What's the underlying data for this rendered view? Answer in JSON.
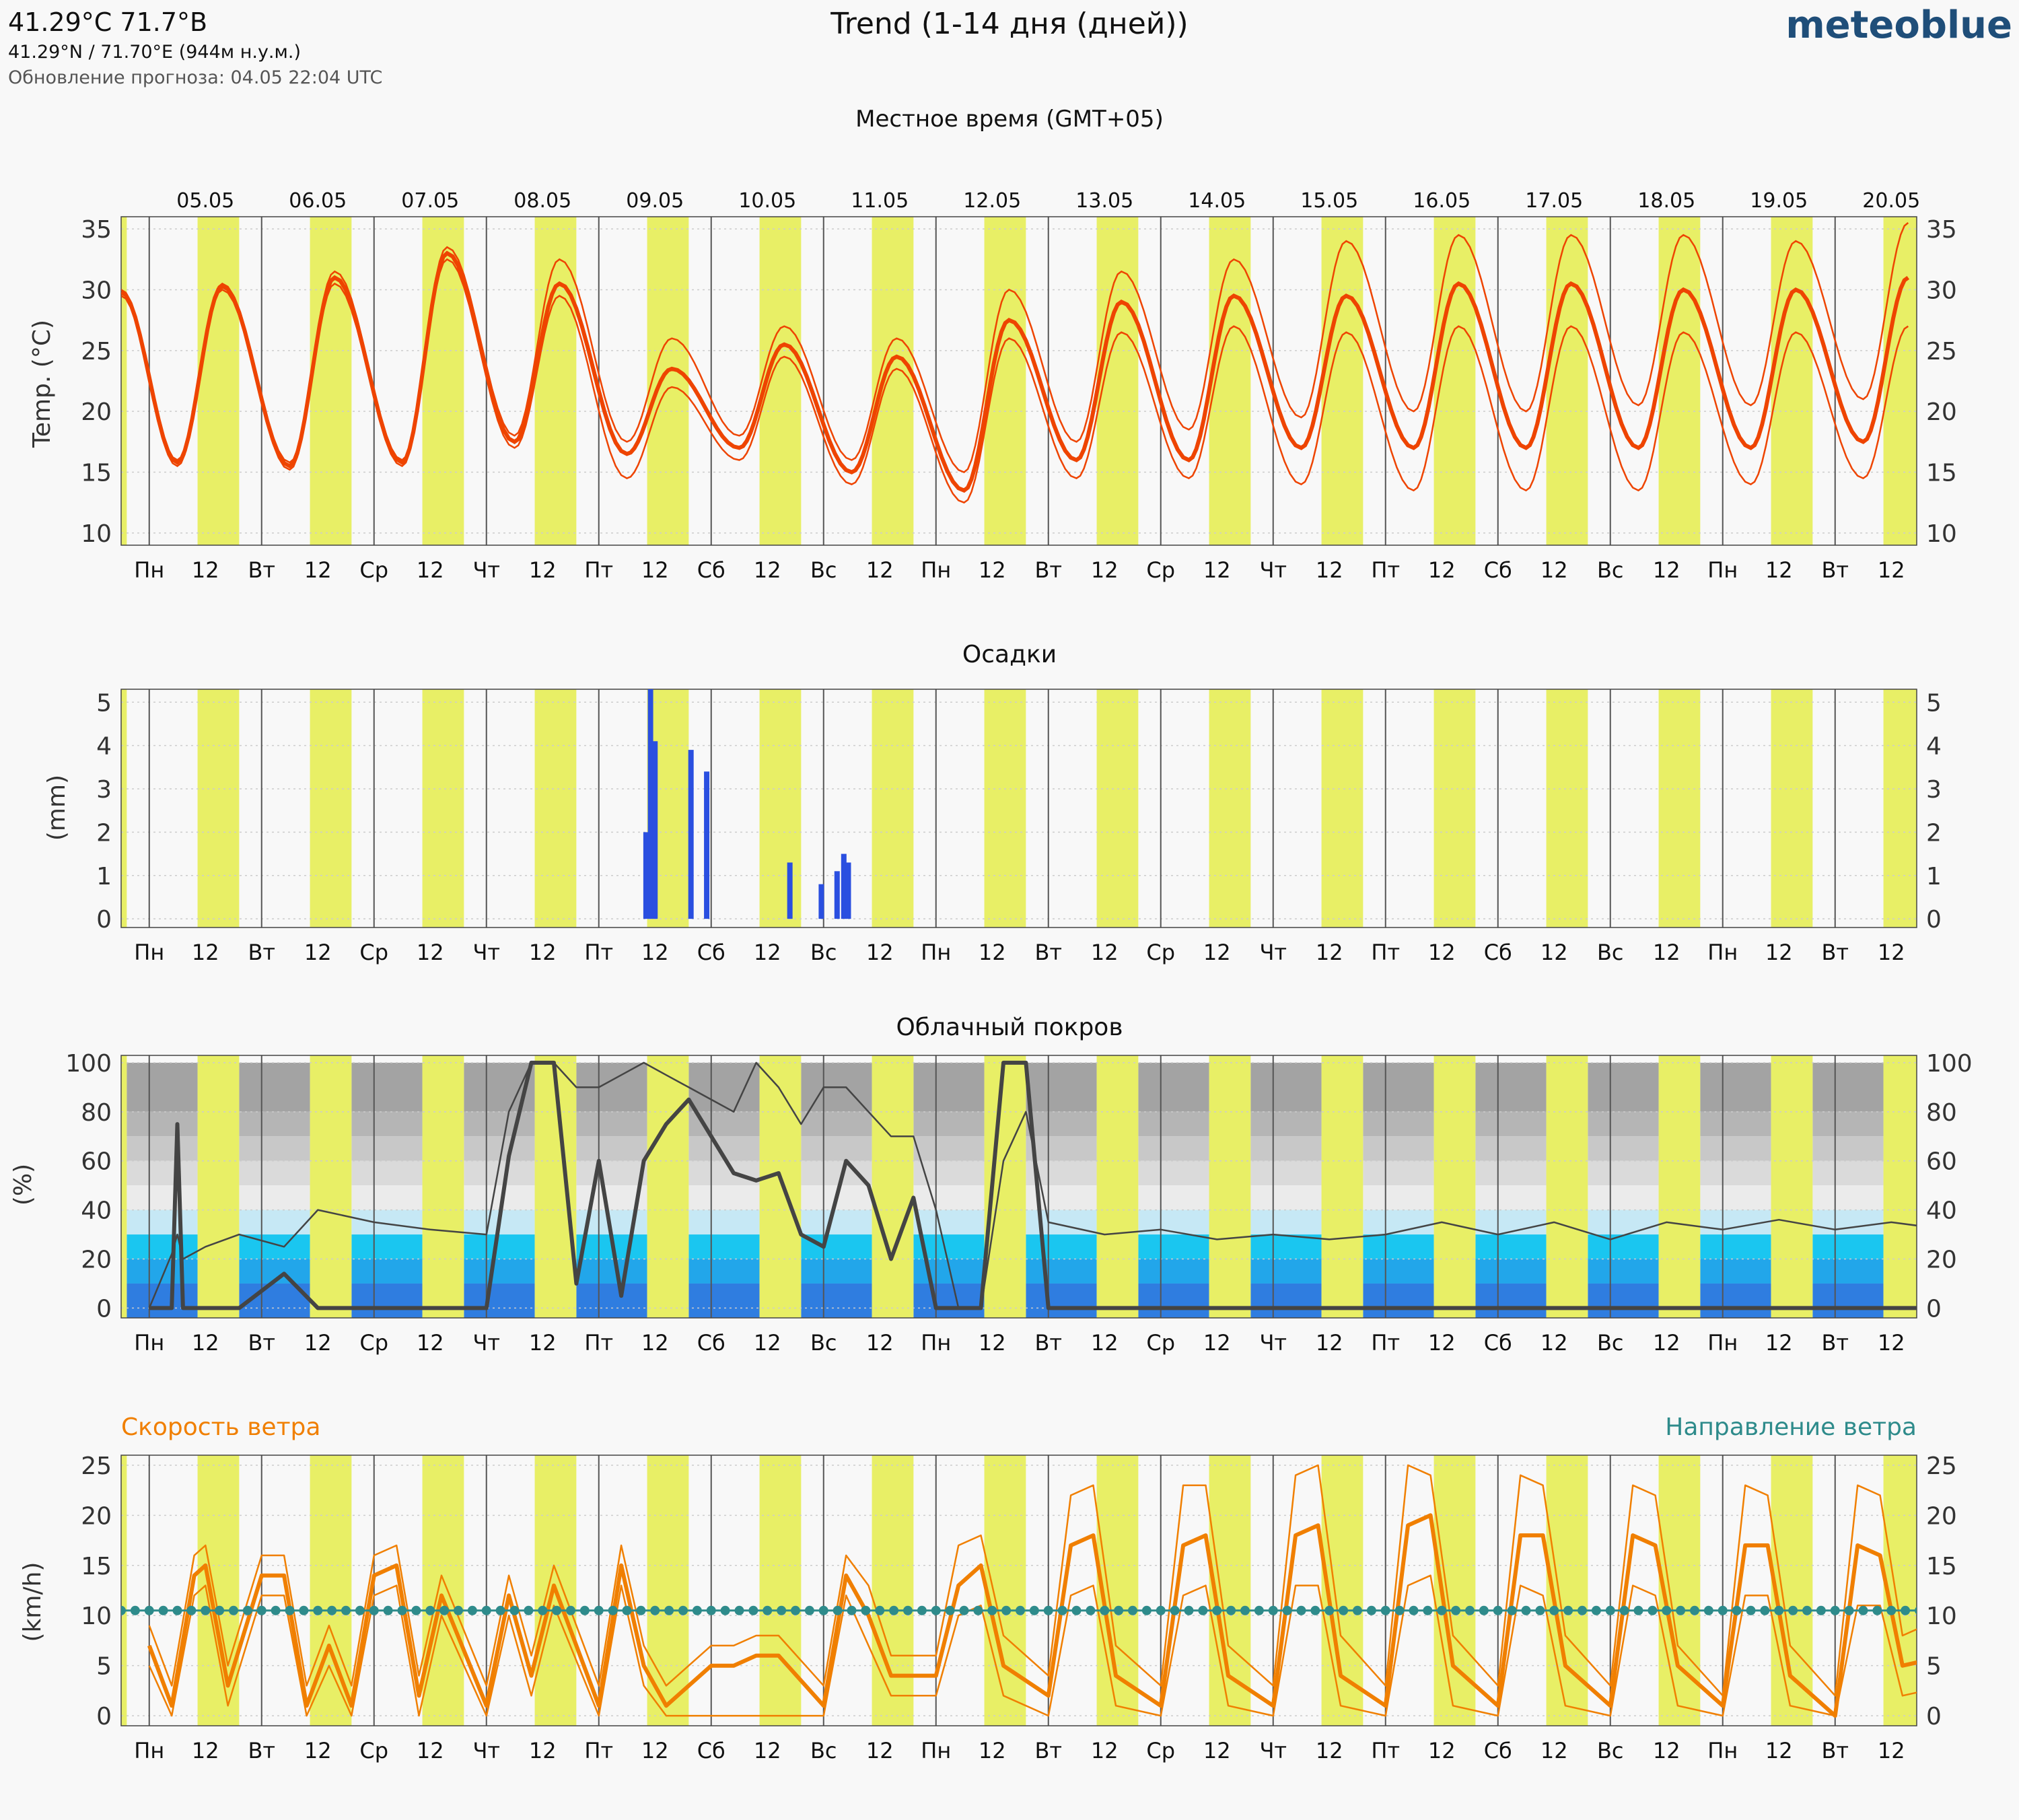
{
  "header": {
    "location": "41.29°C 71.7°B",
    "coords": "41.29°N / 71.70°E (944м н.у.м.)",
    "updated": "Обновление прогноза: 04.05 22:04 UTC",
    "title": "Trend (1-14 дня (дней))",
    "brand": "meteoblue",
    "brand_color": "#1f4e79"
  },
  "timezone_label": "Местное время (GMT+05)",
  "dates": [
    "05.05",
    "06.05",
    "07.05",
    "08.05",
    "09.05",
    "10.05",
    "11.05",
    "12.05",
    "13.05",
    "14.05",
    "15.05",
    "16.05",
    "17.05",
    "18.05",
    "19.05",
    "20.05"
  ],
  "weekday_labels": [
    "Пн",
    "Вт",
    "Ср",
    "Чт",
    "Пт",
    "Сб",
    "Вс",
    "Пн",
    "Вт",
    "Ср",
    "Чт",
    "Пт",
    "Сб",
    "Вс",
    "Пн",
    "Вт"
  ],
  "noon_label": "12",
  "colors": {
    "daylight": "#e8ef66",
    "temp": "#ee4400",
    "precip": "#2a4fe0",
    "cloud_line": "#444444",
    "wind_speed": "#f07f00",
    "wind_dir": "#2e8b8b",
    "clear_sky": "#1ac6f0",
    "dark_blue": "#2f7de0"
  },
  "chart_data": [
    {
      "type": "line",
      "title": "",
      "ylabel": "Temp. (°C)",
      "ylim": [
        9,
        36
      ],
      "yticks": [
        10,
        15,
        20,
        25,
        30,
        35
      ],
      "x_unit": "days from 05.05 00:00 local time",
      "series": [
        {
          "name": "median",
          "min": [
            15.8,
            15.5,
            15.8,
            17.5,
            16.5,
            17.0,
            15.0,
            13.5,
            16.0,
            16.0,
            17.0,
            17.0,
            17.0,
            17.0,
            17.0,
            17.5
          ],
          "max": [
            30.3,
            31.0,
            33.0,
            30.5,
            23.5,
            25.5,
            24.5,
            27.5,
            29.0,
            29.5,
            29.5,
            30.5,
            30.5,
            30.0,
            30.0,
            31.0
          ]
        },
        {
          "name": "upper",
          "min": [
            16.0,
            15.8,
            16.0,
            18.0,
            17.5,
            18.0,
            16.0,
            15.0,
            17.5,
            18.5,
            19.5,
            20.0,
            20.0,
            20.5,
            20.5,
            21.0
          ],
          "max": [
            30.5,
            31.5,
            33.5,
            32.5,
            26.0,
            27.0,
            26.0,
            30.0,
            31.5,
            32.5,
            34.0,
            34.5,
            34.5,
            34.5,
            34.0,
            35.5
          ]
        },
        {
          "name": "lower",
          "min": [
            15.5,
            15.2,
            15.5,
            17.0,
            14.5,
            16.0,
            14.0,
            12.5,
            14.5,
            14.5,
            14.0,
            13.5,
            13.5,
            13.5,
            14.0,
            14.5
          ],
          "max": [
            30.0,
            30.5,
            32.5,
            29.5,
            22.0,
            24.5,
            23.5,
            26.0,
            26.5,
            27.0,
            26.5,
            27.0,
            27.0,
            26.5,
            26.5,
            27.0
          ]
        }
      ]
    },
    {
      "type": "bar",
      "title": "Осадки",
      "ylabel": "(mm)",
      "ylim": [
        -0.2,
        5.3
      ],
      "yticks": [
        0,
        1,
        2,
        3,
        4,
        5
      ],
      "x_unit": "days from 05.05 00:00 local time",
      "x": [
        4.42,
        4.46,
        4.5,
        4.82,
        4.96,
        5.7,
        5.98,
        6.12,
        6.18,
        6.22
      ],
      "values": [
        2.0,
        5.3,
        4.1,
        3.9,
        3.4,
        1.3,
        0.8,
        1.1,
        1.5,
        1.3
      ]
    },
    {
      "type": "line",
      "title": "Облачный покров",
      "ylabel": "(%)",
      "ylim": [
        -4,
        103
      ],
      "yticks": [
        0,
        20,
        40,
        60,
        80,
        100
      ],
      "x_unit": "days from 05.05 00:00 local time",
      "x": [
        0,
        0.2,
        0.25,
        0.3,
        0.5,
        0.8,
        1.2,
        1.5,
        2,
        2.5,
        3,
        3.2,
        3.4,
        3.6,
        3.8,
        4,
        4.2,
        4.4,
        4.6,
        4.8,
        5,
        5.2,
        5.4,
        5.6,
        5.8,
        6,
        6.2,
        6.4,
        6.6,
        6.8,
        7,
        7.2,
        7.4,
        7.6,
        7.8,
        8,
        8.5,
        9,
        9.5,
        10,
        10.5,
        11,
        11.5,
        12,
        12.5,
        13,
        13.5,
        14,
        14.5,
        15,
        15.5,
        16
      ],
      "series": [
        {
          "name": "median",
          "values": [
            0,
            0,
            75,
            0,
            0,
            0,
            14,
            0,
            0,
            0,
            0,
            62,
            100,
            100,
            10,
            60,
            5,
            60,
            75,
            85,
            70,
            55,
            52,
            55,
            30,
            25,
            60,
            50,
            20,
            45,
            0,
            0,
            0,
            100,
            100,
            0,
            0,
            0,
            0,
            0,
            0,
            0,
            0,
            0,
            0,
            0,
            0,
            0,
            0,
            0,
            0,
            0
          ]
        },
        {
          "name": "upper",
          "values": [
            0,
            22,
            30,
            20,
            25,
            30,
            25,
            40,
            35,
            32,
            30,
            80,
            100,
            100,
            90,
            90,
            95,
            100,
            95,
            90,
            85,
            80,
            100,
            90,
            75,
            90,
            90,
            80,
            70,
            70,
            40,
            0,
            0,
            60,
            80,
            35,
            30,
            32,
            28,
            30,
            28,
            30,
            35,
            30,
            35,
            28,
            35,
            32,
            36,
            32,
            35,
            32
          ]
        }
      ]
    },
    {
      "type": "line",
      "title": "",
      "ylabel": "(km/h)",
      "legend": [
        "Скорость ветра",
        "Направление ветра"
      ],
      "ylim": [
        -1,
        26
      ],
      "yticks": [
        0,
        5,
        10,
        15,
        20,
        25
      ],
      "x_unit": "days from 05.05 00:00 local time",
      "x": [
        0,
        0.2,
        0.4,
        0.5,
        0.7,
        1,
        1.2,
        1.4,
        1.6,
        1.8,
        2,
        2.2,
        2.4,
        2.6,
        3,
        3.2,
        3.4,
        3.6,
        4,
        4.2,
        4.4,
        4.6,
        5,
        5.2,
        5.4,
        5.6,
        6,
        6.2,
        6.4,
        6.6,
        7,
        7.2,
        7.4,
        7.6,
        8,
        8.2,
        8.4,
        8.6,
        9,
        9.2,
        9.4,
        9.6,
        10,
        10.2,
        10.4,
        10.6,
        11,
        11.2,
        11.4,
        11.6,
        12,
        12.2,
        12.4,
        12.6,
        13,
        13.2,
        13.4,
        13.6,
        14,
        14.2,
        14.4,
        14.6,
        15,
        15.2,
        15.4,
        15.6,
        16
      ],
      "series": [
        {
          "name": "median",
          "values": [
            7,
            1,
            14,
            15,
            3,
            14,
            14,
            1,
            7,
            1,
            14,
            15,
            2,
            12,
            1,
            12,
            4,
            13,
            1,
            15,
            5,
            1,
            5,
            5,
            6,
            6,
            1,
            14,
            10,
            4,
            4,
            13,
            15,
            5,
            2,
            17,
            18,
            4,
            1,
            17,
            18,
            4,
            1,
            18,
            19,
            4,
            1,
            19,
            20,
            5,
            1,
            18,
            18,
            5,
            1,
            18,
            17,
            5,
            1,
            17,
            17,
            4,
            0,
            17,
            16,
            5,
            6
          ]
        },
        {
          "name": "upper",
          "values": [
            9,
            3,
            16,
            17,
            5,
            16,
            16,
            3,
            9,
            3,
            16,
            17,
            4,
            14,
            3,
            14,
            6,
            15,
            3,
            17,
            7,
            3,
            7,
            7,
            8,
            8,
            3,
            16,
            13,
            6,
            6,
            17,
            18,
            8,
            4,
            22,
            23,
            7,
            3,
            23,
            23,
            7,
            3,
            24,
            25,
            8,
            3,
            25,
            24,
            8,
            3,
            24,
            23,
            8,
            3,
            23,
            22,
            7,
            2,
            23,
            22,
            7,
            2,
            23,
            22,
            8,
            10
          ]
        },
        {
          "name": "lower",
          "values": [
            5,
            0,
            12,
            13,
            1,
            12,
            12,
            0,
            5,
            0,
            12,
            13,
            0,
            10,
            0,
            10,
            2,
            11,
            0,
            13,
            3,
            0,
            0,
            0,
            0,
            0,
            0,
            12,
            7,
            2,
            2,
            10,
            11,
            2,
            0,
            12,
            13,
            1,
            0,
            12,
            13,
            1,
            0,
            13,
            13,
            1,
            0,
            13,
            14,
            1,
            0,
            13,
            12,
            1,
            0,
            13,
            12,
            1,
            0,
            12,
            12,
            1,
            0,
            11,
            11,
            2,
            3
          ]
        }
      ],
      "wind_dir_level": 10.5
    }
  ]
}
